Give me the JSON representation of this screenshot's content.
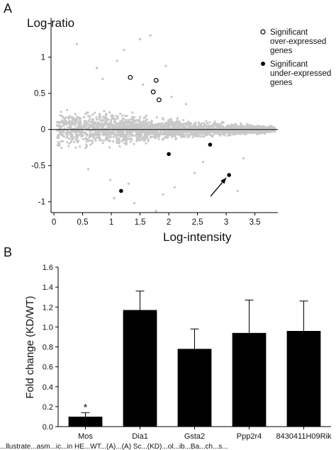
{
  "panels": {
    "a": {
      "letter": "A"
    },
    "b": {
      "letter": "B"
    }
  },
  "colors": {
    "cloud": "#c8c8c8",
    "bar": "#000000",
    "axis": "#000000"
  },
  "caption_fragment": "...llustrate...asm...ic...in HE...WT...(A)...(A) Sc...(KD)...ol...ib...Ba...ch...s...",
  "chart_data": [
    {
      "type": "scatter",
      "panel": "A",
      "ylabel": "Log-ratio",
      "xlabel": "Log-intensity",
      "xlim": [
        -0.05,
        3.9
      ],
      "ylim": [
        -1.15,
        1.35
      ],
      "xticks": [
        "0",
        "0.5",
        "1",
        "1.5",
        "2",
        "2.5",
        "3",
        "3.5"
      ],
      "xtick_values": [
        0,
        0.5,
        1,
        1.5,
        2,
        2.5,
        3,
        3.5
      ],
      "yticks": [
        "-1",
        "-0.5",
        "0",
        "0.5",
        "1"
      ],
      "ytick_values": [
        -1,
        -0.5,
        0,
        0.5,
        1
      ],
      "reference_line_y": 0,
      "legend": {
        "placement": "top-right",
        "over_label": "Significant over-expressed genes",
        "under_label": "Significant under-expressed genes"
      },
      "series": [
        {
          "name": "Significant over-expressed genes",
          "marker": "open-circle",
          "points": [
            [
              1.33,
              0.72
            ],
            [
              1.78,
              0.68
            ],
            [
              1.73,
              0.52
            ],
            [
              1.83,
              0.41
            ]
          ]
        },
        {
          "name": "Significant under-expressed genes",
          "marker": "filled-circle",
          "points": [
            [
              1.17,
              -0.85
            ],
            [
              2.0,
              -0.34
            ],
            [
              2.72,
              -0.21
            ],
            [
              3.05,
              -0.63
            ]
          ]
        }
      ],
      "background_cloud": {
        "description": "dense grey cloud of all genes, widest near low intensity",
        "spread_envelope": [
          [
            0.05,
            0.28
          ],
          [
            0.5,
            0.3
          ],
          [
            1.0,
            0.25
          ],
          [
            1.5,
            0.2
          ],
          [
            2.0,
            0.16
          ],
          [
            2.5,
            0.12
          ],
          [
            3.0,
            0.09
          ],
          [
            3.5,
            0.07
          ],
          [
            3.85,
            0.05
          ]
        ]
      },
      "outliers": [
        [
          0.4,
          1.18
        ],
        [
          0.75,
          0.85
        ],
        [
          1.1,
          0.95
        ],
        [
          1.5,
          1.25
        ],
        [
          1.68,
          1.3
        ],
        [
          1.22,
          1.1
        ],
        [
          0.98,
          -0.7
        ],
        [
          1.3,
          -0.75
        ],
        [
          1.9,
          -0.9
        ],
        [
          2.1,
          -0.8
        ],
        [
          2.45,
          -0.6
        ],
        [
          2.95,
          -0.7
        ],
        [
          3.2,
          -0.85
        ],
        [
          1.05,
          -0.95
        ],
        [
          1.78,
          -1.13
        ],
        [
          1.4,
          -1.02
        ],
        [
          0.6,
          -0.55
        ],
        [
          1.55,
          0.62
        ],
        [
          2.05,
          0.45
        ],
        [
          2.3,
          0.35
        ],
        [
          0.85,
          0.7
        ],
        [
          3.3,
          -0.4
        ],
        [
          1.95,
          0.88
        ],
        [
          2.6,
          -0.45
        ]
      ],
      "annotation": {
        "type": "arrow",
        "target": [
          3.05,
          -0.63
        ]
      }
    },
    {
      "type": "bar",
      "panel": "B",
      "ylabel": "Fold change (KD/WT)",
      "xlabel": "",
      "categories": [
        "Mos",
        "Dia1",
        "Gsta2",
        "Ppp2r4",
        "8430411H09Rik"
      ],
      "values": [
        0.1,
        1.17,
        0.78,
        0.94,
        0.96
      ],
      "errors": [
        0.04,
        0.19,
        0.2,
        0.33,
        0.3
      ],
      "ylim": [
        0,
        1.6
      ],
      "yticks": [
        "0.0",
        "0.2",
        "0.4",
        "0.6",
        "0.8",
        "1.0",
        "1.2",
        "1.4",
        "1.6"
      ],
      "ytick_values": [
        0,
        0.2,
        0.4,
        0.6,
        0.8,
        1.0,
        1.2,
        1.4,
        1.6
      ],
      "significance_marker": "*",
      "significant_category": "Mos"
    }
  ]
}
